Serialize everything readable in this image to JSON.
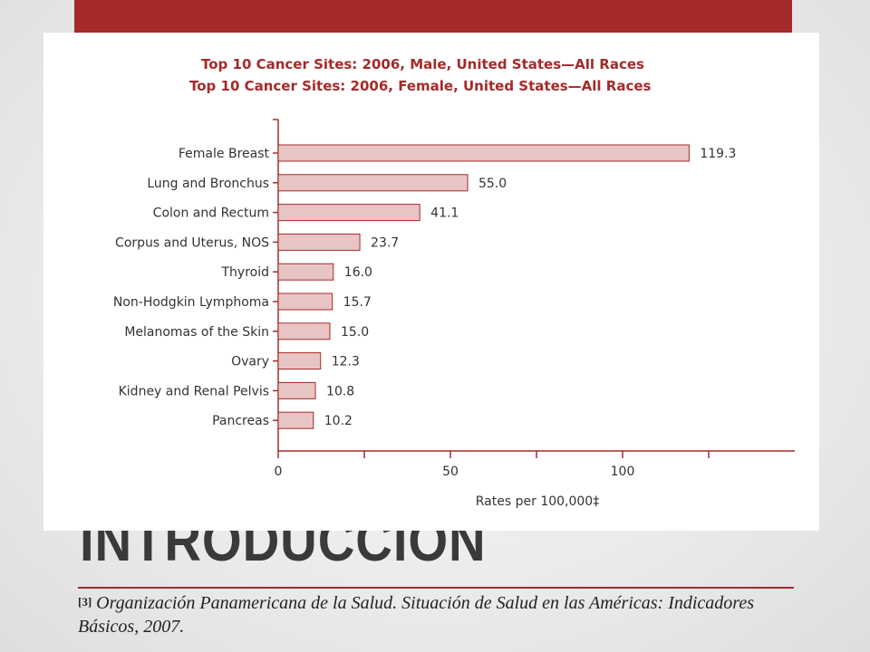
{
  "slide": {
    "title": "INTRODUCCION",
    "citation_ref": "[3]",
    "citation_text": "Organización Panamericana de la Salud. Situación de Salud en las Américas: Indicadores Básicos, 2007."
  },
  "colors": {
    "accent": "#a52a2a",
    "bar_fill": "#e8c4c4",
    "bar_stroke": "#a52a2a",
    "axis": "#a52a2a"
  },
  "chart_data": {
    "type": "bar",
    "orientation": "horizontal",
    "clipped_title": "Top 10 Cancer Sites: 2006, Male, United States—All Races",
    "title": "Top 10 Cancer Sites: 2006, Female, United States—All Races",
    "categories": [
      "Female Breast",
      "Lung and Bronchus",
      "Colon and Rectum",
      "Corpus and Uterus, NOS",
      "Thyroid",
      "Non-Hodgkin Lymphoma",
      "Melanomas of the Skin",
      "Ovary",
      "Kidney and Renal Pelvis",
      "Pancreas"
    ],
    "values": [
      119.3,
      55.0,
      41.1,
      23.7,
      16.0,
      15.7,
      15.0,
      12.3,
      10.8,
      10.2
    ],
    "value_labels": [
      "119.3",
      "55.0",
      "41.1",
      "23.7",
      "16.0",
      "15.7",
      "15.0",
      "12.3",
      "10.8",
      "10.2"
    ],
    "xlabel": "Rates per 100,000‡",
    "ylabel": "",
    "xlim": [
      0,
      150
    ],
    "xticks": [
      0,
      50,
      100
    ],
    "minor_xticks": [
      25,
      75,
      125
    ],
    "grid": false,
    "legend": "none"
  }
}
